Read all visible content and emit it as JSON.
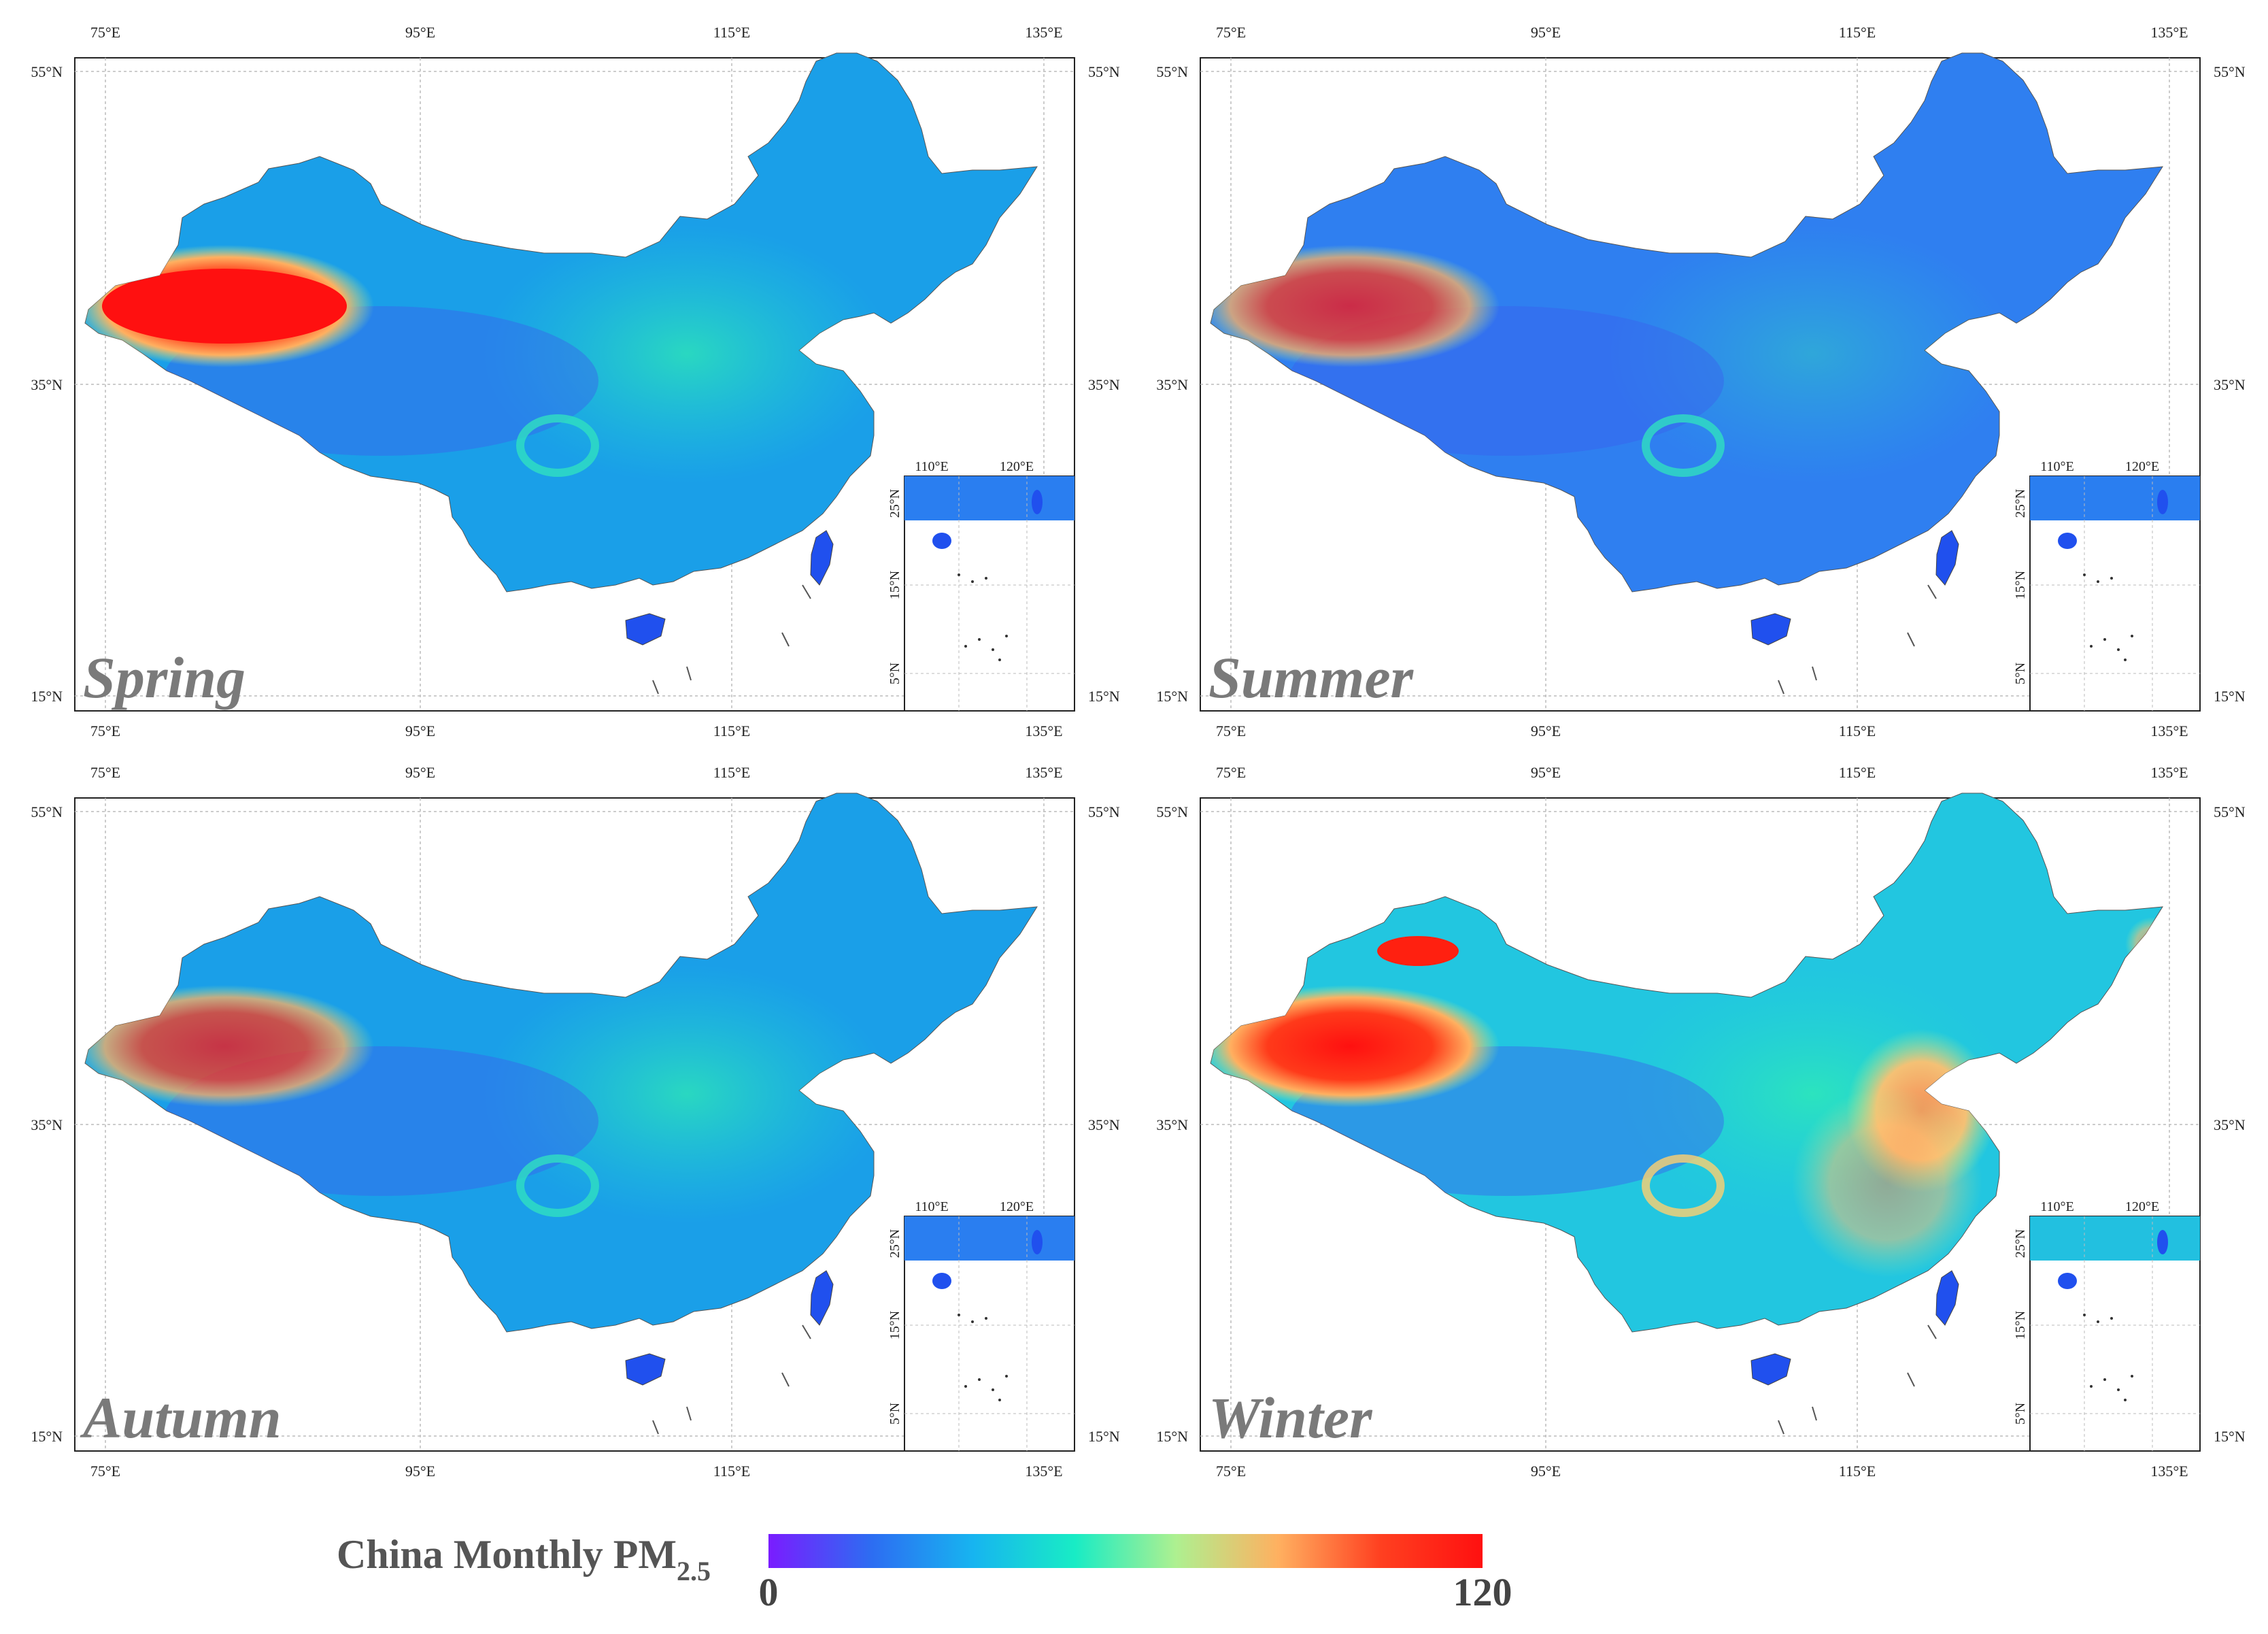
{
  "colorbar": {
    "label": "China Monthly PM",
    "label_sub": "2.5",
    "min_label": "0",
    "max_label": "120",
    "min": 0,
    "max": 120,
    "stops": [
      "#7a1cff",
      "#2d6cf2",
      "#17b4f0",
      "#18ecc5",
      "#aef090",
      "#ffb060",
      "#ff4020",
      "#ff1010"
    ]
  },
  "panels": [
    {
      "season": "Spring",
      "hotspot": "high"
    },
    {
      "season": "Summer",
      "hotspot": "medium"
    },
    {
      "season": "Autumn",
      "hotspot": "medium"
    },
    {
      "season": "Winter",
      "hotspot": "high"
    }
  ],
  "axes": {
    "lon_labels": [
      "75°E",
      "95°E",
      "115°E",
      "135°E"
    ],
    "lat_labels": [
      "55°N",
      "35°N",
      "15°N"
    ],
    "inset_lon_labels": [
      "110°E",
      "120°E"
    ],
    "inset_lat_labels": [
      "25°N",
      "15°N",
      "5°N"
    ]
  }
}
